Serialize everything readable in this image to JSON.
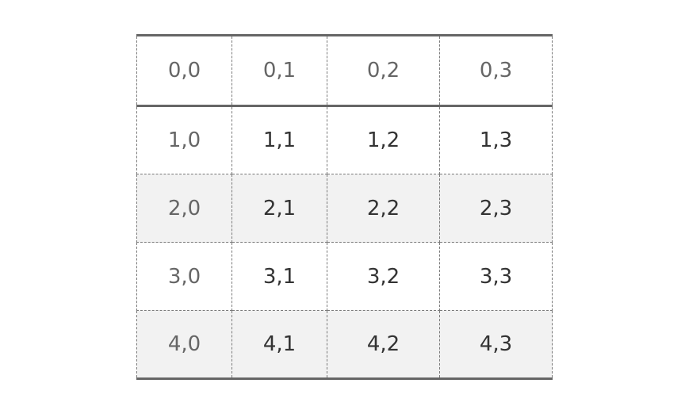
{
  "table": {
    "header": [
      "0,0",
      "0,1",
      "0,2",
      "0,3"
    ],
    "rows": [
      [
        "1,0",
        "1,1",
        "1,2",
        "1,3"
      ],
      [
        "2,0",
        "2,1",
        "2,2",
        "2,3"
      ],
      [
        "3,0",
        "3,1",
        "3,2",
        "3,3"
      ],
      [
        "4,0",
        "4,1",
        "4,2",
        "4,3"
      ]
    ]
  },
  "colors": {
    "header_text": "#666666",
    "body_text": "#333333",
    "stripe": "#f2f2f2",
    "border": "#666666"
  }
}
